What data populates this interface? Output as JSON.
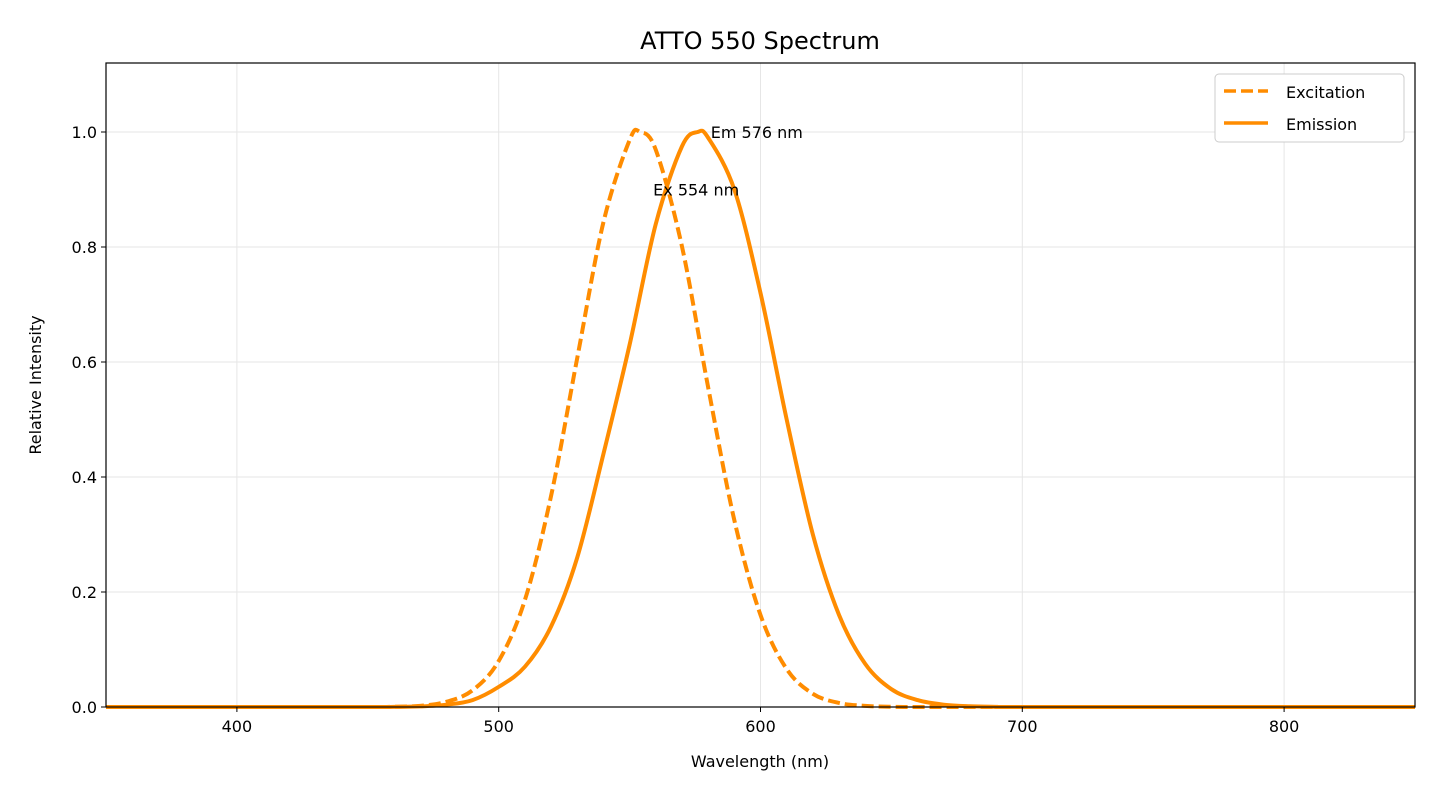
{
  "chart_data": {
    "type": "line",
    "title": "ATTO 550 Spectrum",
    "xlabel": "Wavelength (nm)",
    "ylabel": "Relative Intensity",
    "xlim": [
      350,
      850
    ],
    "ylim": [
      0,
      1.12
    ],
    "xticks": [
      400,
      500,
      600,
      700,
      800
    ],
    "xtick_labels": [
      "400",
      "500",
      "600",
      "700",
      "800"
    ],
    "yticks": [
      0,
      0.2,
      0.4,
      0.6,
      0.8,
      1.0
    ],
    "ytick_labels": [
      "0.0",
      "0.2",
      "0.4",
      "0.6",
      "0.8",
      "1.0"
    ],
    "grid": true,
    "legend_position": "top-right",
    "color": "#ff8c00",
    "series": [
      {
        "name": "Excitation",
        "style": "dashed",
        "x": [
          350,
          400,
          450,
          460,
          470,
          480,
          490,
          500,
          510,
          520,
          530,
          540,
          550,
          554,
          560,
          570,
          580,
          590,
          600,
          610,
          620,
          630,
          640,
          650,
          660,
          700,
          800,
          850
        ],
        "y": [
          0,
          0,
          0,
          0.0005,
          0.002,
          0.009,
          0.029,
          0.08,
          0.186,
          0.367,
          0.607,
          0.843,
          0.986,
          1.0,
          0.969,
          0.801,
          0.556,
          0.325,
          0.16,
          0.066,
          0.023,
          0.007,
          0.002,
          0.0003,
          0,
          0,
          0,
          0
        ]
      },
      {
        "name": "Emission",
        "style": "solid",
        "x": [
          350,
          400,
          450,
          460,
          470,
          480,
          490,
          500,
          510,
          520,
          530,
          540,
          550,
          560,
          570,
          576,
          580,
          590,
          600,
          610,
          620,
          630,
          640,
          650,
          660,
          670,
          680,
          690,
          700,
          800,
          850
        ],
        "y": [
          0,
          0,
          0,
          0.0002,
          0.001,
          0.004,
          0.012,
          0.035,
          0.07,
          0.14,
          0.26,
          0.44,
          0.63,
          0.84,
          0.975,
          1.0,
          0.99,
          0.9,
          0.72,
          0.5,
          0.3,
          0.16,
          0.075,
          0.031,
          0.012,
          0.004,
          0.0012,
          0.0003,
          0,
          0,
          0
        ]
      }
    ],
    "annotations": [
      {
        "text": "Em 576 nm",
        "x": 581,
        "y": 1.0
      },
      {
        "text": "Ex 554 nm",
        "x": 559,
        "y": 0.9
      }
    ]
  }
}
